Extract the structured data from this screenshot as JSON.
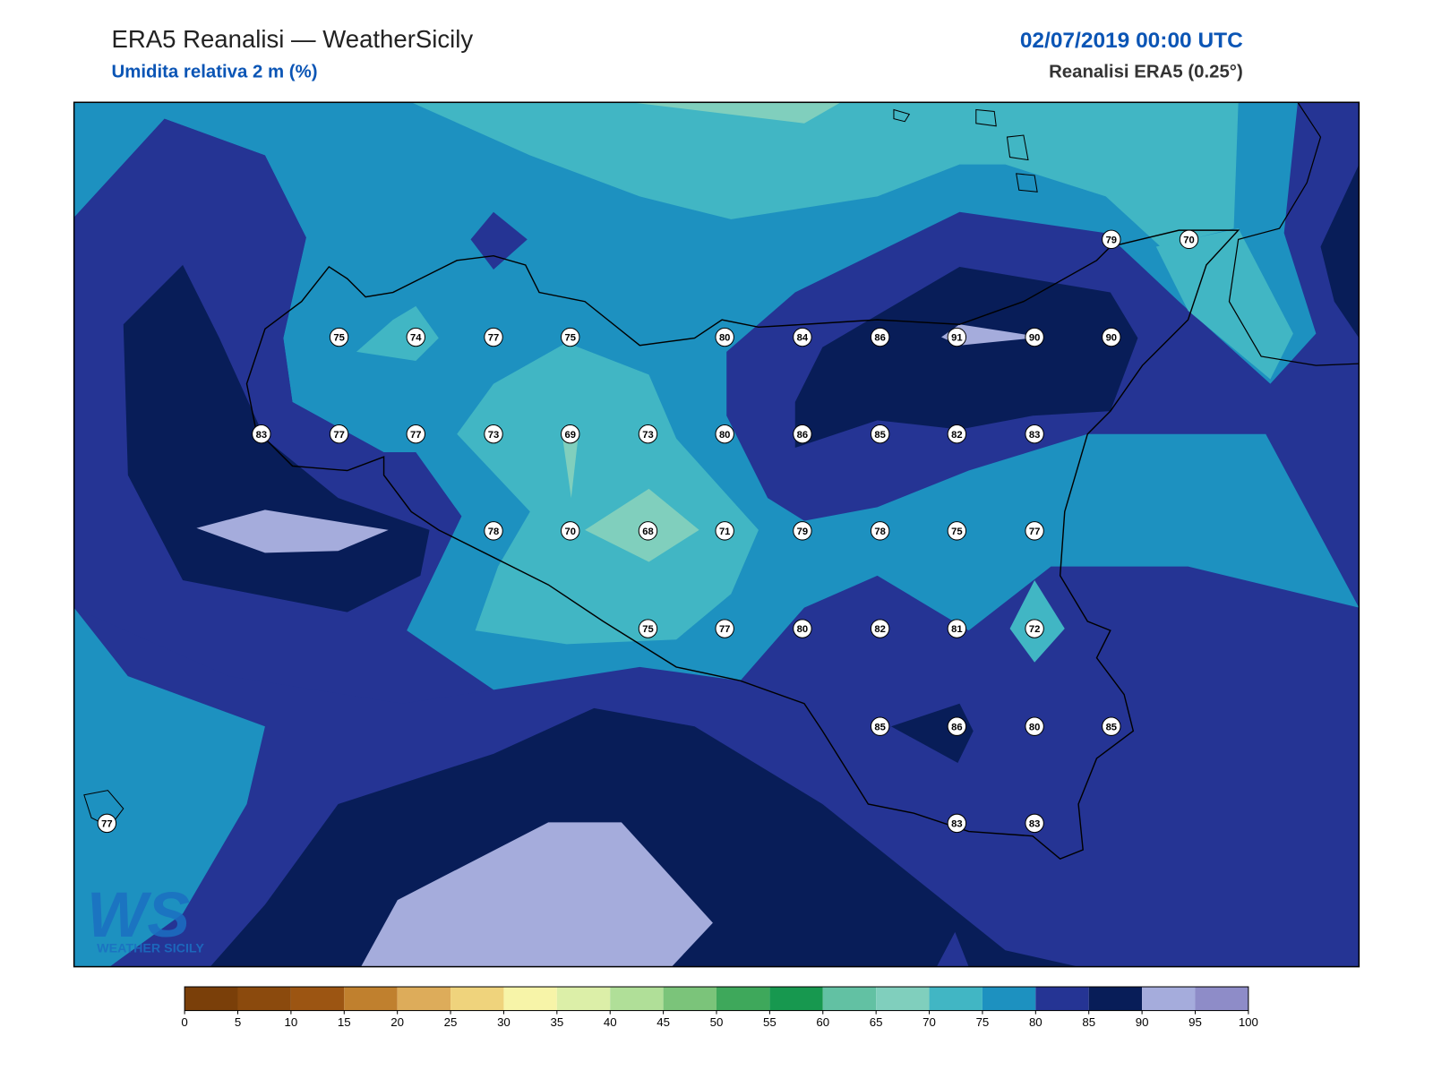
{
  "header": {
    "title": "ERA5 Reanalisi — WeatherSicily",
    "subtitle": "Umidita relativa 2 m (%)",
    "datetime": "02/07/2019 00:00 UTC",
    "source": "Reanalisi ERA5 (0.25°)"
  },
  "stations": [
    75,
    74,
    77,
    75,
    80,
    84,
    86,
    91,
    90,
    90,
    79,
    70,
    83,
    77,
    77,
    73,
    69,
    73,
    80,
    86,
    85,
    82,
    83,
    78,
    70,
    68,
    71,
    79,
    78,
    75,
    77,
    75,
    77,
    80,
    82,
    81,
    72,
    85,
    86,
    80,
    85,
    77,
    83,
    83
  ],
  "logo": {
    "mark": "WS",
    "text": "WEATHER SICILY"
  },
  "colorbar": {
    "ticks": [
      0,
      5,
      10,
      15,
      20,
      25,
      30,
      35,
      40,
      45,
      50,
      55,
      60,
      65,
      70,
      75,
      80,
      85,
      90,
      95,
      100
    ],
    "colors": [
      "#7a3f09",
      "#8b4a0d",
      "#9c5512",
      "#c0802e",
      "#ddac5a",
      "#efd37c",
      "#f7f4a8",
      "#dcefa8",
      "#b0df98",
      "#7bc47a",
      "#3ea85b",
      "#17984f",
      "#62c1a3",
      "#80cfbd",
      "#41b6c4",
      "#1d91c0",
      "#253494",
      "#081d58",
      "#a5acdc",
      "#8e8cc8"
    ]
  }
}
